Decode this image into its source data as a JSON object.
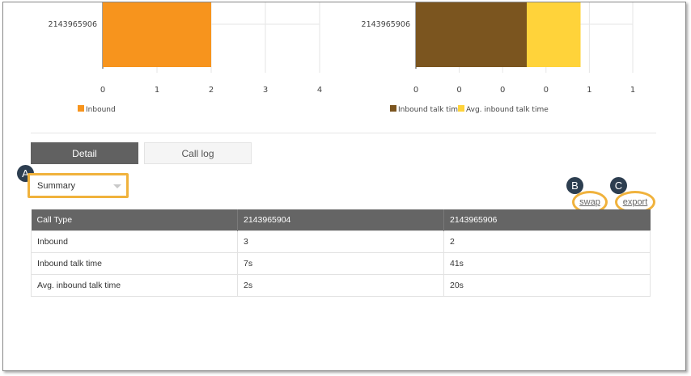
{
  "charts": {
    "left": {
      "category": "2143965906",
      "ticks": [
        "0",
        "1",
        "2",
        "3",
        "4"
      ],
      "legend": "Inbound",
      "color": "#f7941d"
    },
    "right": {
      "category": "2143965906",
      "ticks": [
        "0",
        "0",
        "0",
        "0",
        "1",
        "1"
      ],
      "legend_inbound": "Inbound talk time",
      "legend_avg": "Avg. inbound talk time",
      "color_inbound": "#7b551f",
      "color_avg": "#ffd33a"
    }
  },
  "chart_data": [
    {
      "type": "bar",
      "categories": [
        "2143965906"
      ],
      "series": [
        {
          "name": "Inbound",
          "values": [
            2
          ]
        }
      ],
      "xlim": [
        0,
        4
      ]
    },
    {
      "type": "bar",
      "categories": [
        "2143965906"
      ],
      "series": [
        {
          "name": "Inbound talk time",
          "values": [
            0.68
          ]
        },
        {
          "name": "Avg. inbound talk time",
          "values": [
            0.33
          ]
        }
      ],
      "stacked": true,
      "xlim": [
        0,
        1.33
      ]
    }
  ],
  "tabs": {
    "detail": "Detail",
    "call_log": "Call log"
  },
  "select": {
    "value": "Summary"
  },
  "badges": {
    "a": "A",
    "b": "B",
    "c": "C"
  },
  "links": {
    "swap": "swap",
    "export": "export"
  },
  "table": {
    "headers": [
      "Call Type",
      "2143965904",
      "2143965906"
    ],
    "rows": [
      [
        "Inbound",
        "3",
        "2"
      ],
      [
        "Inbound talk time",
        "7s",
        "41s"
      ],
      [
        "Avg. inbound talk time",
        "2s",
        "20s"
      ]
    ]
  }
}
